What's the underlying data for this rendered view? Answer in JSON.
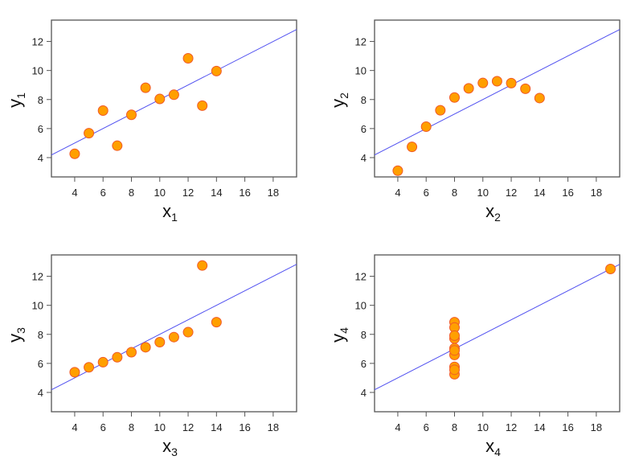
{
  "chart_data": [
    {
      "type": "scatter",
      "xlabel": "x",
      "xsub": "1",
      "ylabel": "y",
      "ysub": "1",
      "xlim": [
        2.36,
        19.65
      ],
      "ylim": [
        2.67,
        13.47
      ],
      "xticks": [
        4,
        6,
        8,
        10,
        12,
        14,
        16,
        18
      ],
      "yticks": [
        4,
        6,
        8,
        10,
        12
      ],
      "x": [
        10,
        8,
        13,
        9,
        11,
        14,
        6,
        4,
        12,
        7,
        5
      ],
      "y": [
        8.04,
        6.95,
        7.58,
        8.81,
        8.33,
        9.96,
        7.24,
        4.26,
        10.84,
        4.82,
        5.68
      ],
      "fit": {
        "intercept": 3,
        "slope": 0.5
      }
    },
    {
      "type": "scatter",
      "xlabel": "x",
      "xsub": "2",
      "ylabel": "y",
      "ysub": "2",
      "xlim": [
        2.36,
        19.65
      ],
      "ylim": [
        2.67,
        13.47
      ],
      "xticks": [
        4,
        6,
        8,
        10,
        12,
        14,
        16,
        18
      ],
      "yticks": [
        4,
        6,
        8,
        10,
        12
      ],
      "x": [
        10,
        8,
        13,
        9,
        11,
        14,
        6,
        4,
        12,
        7,
        5
      ],
      "y": [
        9.14,
        8.14,
        8.74,
        8.77,
        9.26,
        8.1,
        6.13,
        3.1,
        9.13,
        7.26,
        4.74
      ],
      "fit": {
        "intercept": 3,
        "slope": 0.5
      }
    },
    {
      "type": "scatter",
      "xlabel": "x",
      "xsub": "3",
      "ylabel": "y",
      "ysub": "3",
      "xlim": [
        2.36,
        19.65
      ],
      "ylim": [
        2.67,
        13.47
      ],
      "xticks": [
        4,
        6,
        8,
        10,
        12,
        14,
        16,
        18
      ],
      "yticks": [
        4,
        6,
        8,
        10,
        12
      ],
      "x": [
        10,
        8,
        13,
        9,
        11,
        14,
        6,
        4,
        12,
        7,
        5
      ],
      "y": [
        7.46,
        6.77,
        12.74,
        7.11,
        7.81,
        8.84,
        6.08,
        5.39,
        8.15,
        6.42,
        5.73
      ],
      "fit": {
        "intercept": 3,
        "slope": 0.5
      }
    },
    {
      "type": "scatter",
      "xlabel": "x",
      "xsub": "4",
      "ylabel": "y",
      "ysub": "4",
      "xlim": [
        2.36,
        19.65
      ],
      "ylim": [
        2.67,
        13.47
      ],
      "xticks": [
        4,
        6,
        8,
        10,
        12,
        14,
        16,
        18
      ],
      "yticks": [
        4,
        6,
        8,
        10,
        12
      ],
      "x": [
        8,
        8,
        8,
        8,
        8,
        8,
        8,
        19,
        8,
        8,
        8
      ],
      "y": [
        6.58,
        5.76,
        7.71,
        8.84,
        8.47,
        7.04,
        5.25,
        12.5,
        5.56,
        7.91,
        6.89
      ],
      "fit": {
        "intercept": 3,
        "slope": 0.5
      }
    }
  ],
  "colors": {
    "point_fill": "#ff9f00",
    "point_stroke": "#f05a28",
    "line": "#5050f0",
    "axis": "#555555"
  }
}
